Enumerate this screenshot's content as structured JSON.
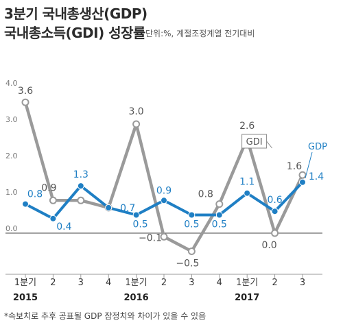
{
  "title_line1": "3분기 국내총생산(GDP)",
  "title_line2": "국내총소득(GDI) 성장률",
  "unit_text": "단위:%, 계절조정계열 전기대비",
  "footnote": "*속보치로 추후 공표될 GDP 잠정치와 차이가 있을 수 있음",
  "colors": {
    "gdp": "#1f7fc4",
    "gdi": "#9a9a9a",
    "axis": "#444444"
  },
  "chart_data": {
    "type": "line",
    "title": "3분기 국내총생산(GDP) 국내총소득(GDI) 성장률",
    "categories": [
      "1분기",
      "2",
      "3",
      "4",
      "1분기",
      "2",
      "3",
      "4",
      "1분기",
      "2",
      "3"
    ],
    "year_labels": [
      {
        "index": 0,
        "label": "2015"
      },
      {
        "index": 4,
        "label": "2016"
      },
      {
        "index": 8,
        "label": "2017"
      }
    ],
    "series": [
      {
        "name": "GDI",
        "values": [
          3.6,
          0.9,
          0.9,
          0.7,
          3.0,
          -0.1,
          -0.5,
          0.8,
          2.6,
          0.0,
          1.6
        ],
        "labels": [
          "3.6",
          "0.9",
          "",
          "",
          "3.0",
          "−0.1",
          "−0.5",
          "0.8",
          "2.6",
          "0.0",
          "1.6"
        ]
      },
      {
        "name": "GDP",
        "values": [
          0.8,
          0.4,
          1.3,
          0.7,
          0.5,
          0.9,
          0.5,
          0.5,
          1.1,
          0.6,
          1.4
        ],
        "labels": [
          "0.8",
          "0.4",
          "1.3",
          "0.7",
          "0.5",
          "0.9",
          "0.5",
          "0.5",
          "1.1",
          "0.6",
          "1.4"
        ]
      }
    ],
    "yticks": [
      "4.0",
      "3.0",
      "2.0",
      "1.0",
      "0.0"
    ],
    "ylim": [
      -0.7,
      4.0
    ],
    "legend": "series names labeled at line ends"
  }
}
